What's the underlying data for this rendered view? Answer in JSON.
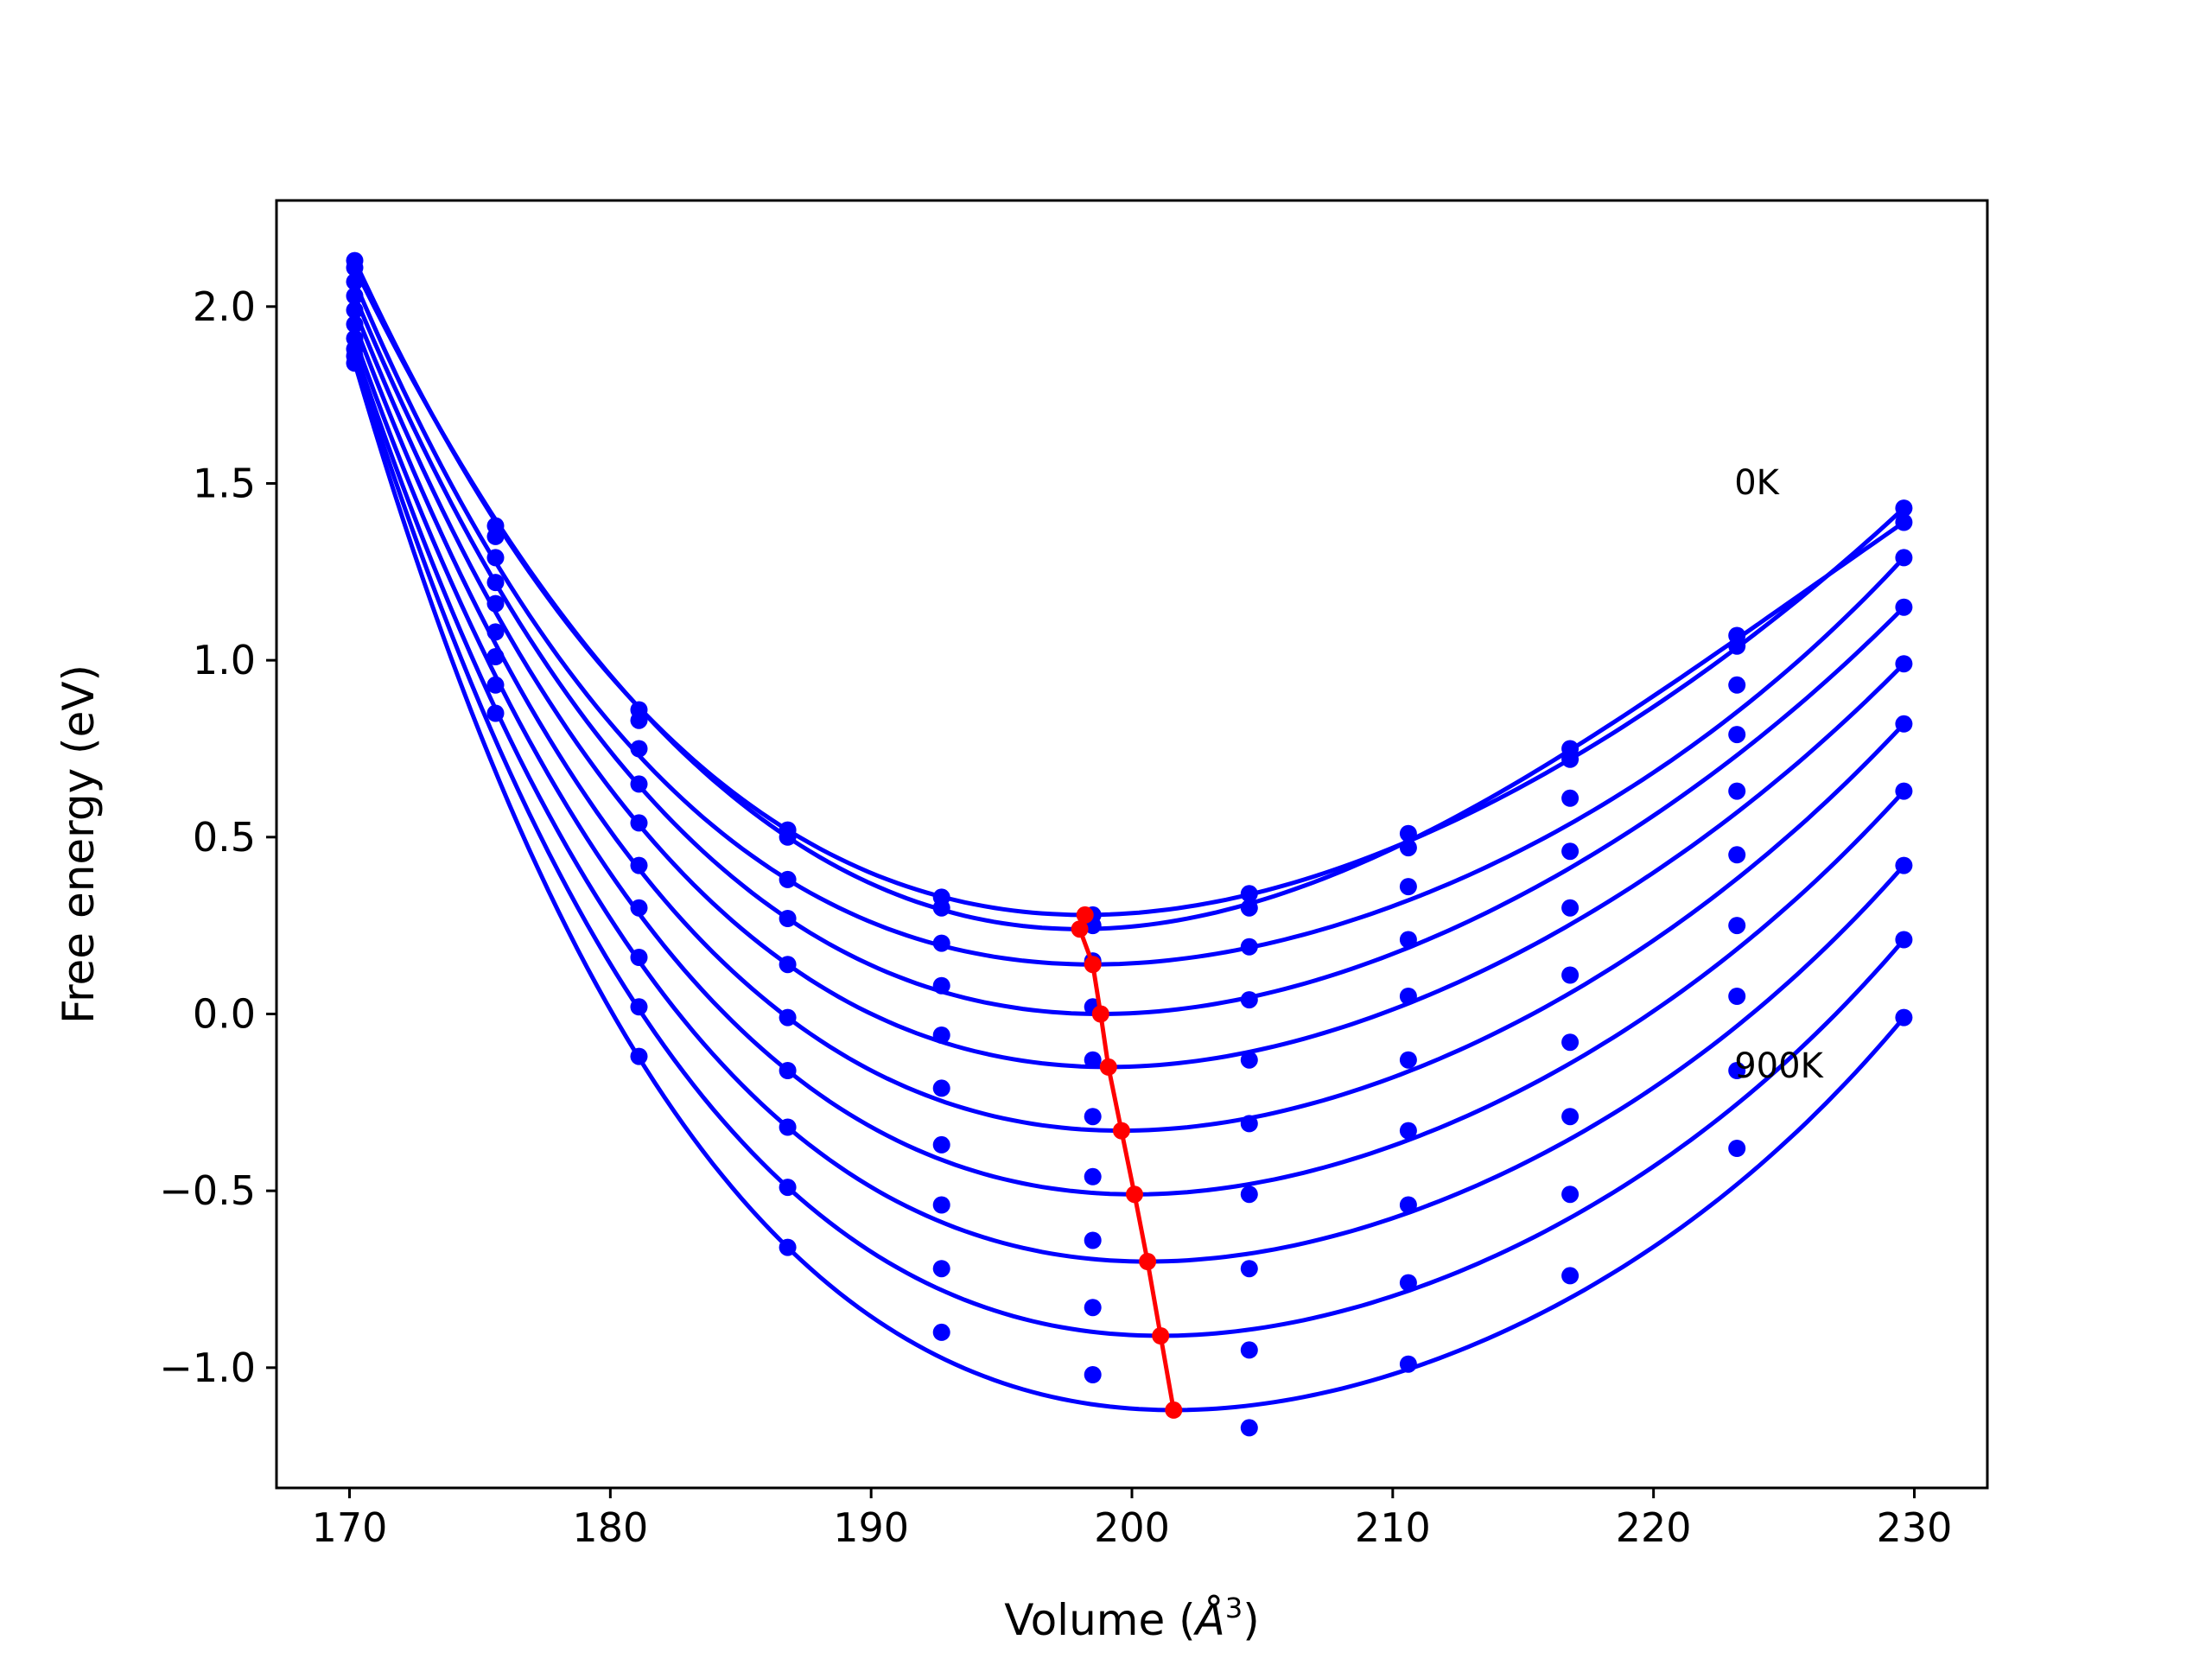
{
  "chart_data": {
    "type": "line",
    "title": "",
    "xlabel": "Volume (",
    "xlabel_symbol": "Å",
    "xlabel_power": "3",
    "xlabel_close": ")",
    "ylabel": "Free energy (eV)",
    "xlim": [
      167.2,
      232.8
    ],
    "ylim": [
      -1.34,
      2.3
    ],
    "xticks": [
      170,
      180,
      190,
      200,
      210,
      220,
      230
    ],
    "xtick_labels": [
      "170",
      "180",
      "190",
      "200",
      "210",
      "220",
      "230"
    ],
    "yticks": [
      -1.0,
      -0.5,
      0.0,
      0.5,
      1.0,
      1.5,
      2.0
    ],
    "ytick_labels": [
      "−1.0",
      "−0.5",
      "0.0",
      "0.5",
      "1.0",
      "1.5",
      "2.0"
    ],
    "grid": false,
    "legend": "none",
    "colors": {
      "isotherm": "#0000ff",
      "minimum": "#ff0000",
      "axes": "#000000",
      "background": "#ffffff"
    },
    "volumes": [
      170.2,
      175.6,
      181.1,
      186.8,
      192.7,
      198.5,
      204.5,
      210.6,
      216.8,
      223.2,
      229.6
    ],
    "series": [
      {
        "values": [
          2.13,
          1.38,
          0.86,
          0.52,
          0.33,
          0.28,
          0.34,
          0.51,
          0.75,
          1.07,
          1.43
        ],
        "min_v": 198.2,
        "min_f": 0.28
      },
      {
        "values": [
          2.11,
          1.35,
          0.83,
          0.5,
          0.3,
          0.25,
          0.3,
          0.47,
          0.72,
          1.04,
          1.39
        ],
        "min_v": 198.0,
        "min_f": 0.24
      },
      {
        "values": [
          2.07,
          1.29,
          0.75,
          0.38,
          0.2,
          0.15,
          0.19,
          0.36,
          0.61,
          0.93,
          1.29
        ],
        "min_v": 198.5,
        "min_f": 0.14
      },
      {
        "values": [
          2.03,
          1.22,
          0.65,
          0.27,
          0.08,
          0.02,
          0.04,
          0.21,
          0.46,
          0.79,
          1.15
        ],
        "min_v": 198.8,
        "min_f": 0.0
      },
      {
        "values": [
          1.99,
          1.16,
          0.54,
          0.14,
          -0.06,
          -0.13,
          -0.13,
          0.05,
          0.3,
          0.63,
          0.99
        ],
        "min_v": 199.1,
        "min_f": -0.15
      },
      {
        "values": [
          1.95,
          1.08,
          0.42,
          -0.01,
          -0.21,
          -0.29,
          -0.31,
          -0.13,
          0.11,
          0.45,
          0.82
        ],
        "min_v": 199.6,
        "min_f": -0.33
      },
      {
        "values": [
          1.91,
          1.01,
          0.3,
          -0.16,
          -0.37,
          -0.46,
          -0.51,
          -0.33,
          -0.08,
          0.25,
          0.63
        ],
        "min_v": 200.1,
        "min_f": -0.51
      },
      {
        "values": [
          1.88,
          0.93,
          0.16,
          -0.32,
          -0.54,
          -0.64,
          -0.72,
          -0.54,
          -0.29,
          0.05,
          0.42
        ],
        "min_v": 200.6,
        "min_f": -0.7
      },
      {
        "values": [
          1.86,
          0.85,
          0.02,
          -0.49,
          -0.72,
          -0.83,
          -0.95,
          -0.76,
          -0.51,
          -0.16,
          0.21
        ],
        "min_v": 201.1,
        "min_f": -0.91
      },
      {
        "values": [
          1.84,
          null,
          -0.12,
          -0.66,
          -0.9,
          -1.02,
          -1.17,
          -0.99,
          -0.74,
          -0.38,
          -0.01
        ],
        "min_v": 201.6,
        "min_f": -1.12
      }
    ],
    "annotations": [
      {
        "text": "0K",
        "x": 223.1,
        "y": 1.47
      },
      {
        "text": "900K",
        "x": 223.1,
        "y": -0.18
      }
    ]
  }
}
